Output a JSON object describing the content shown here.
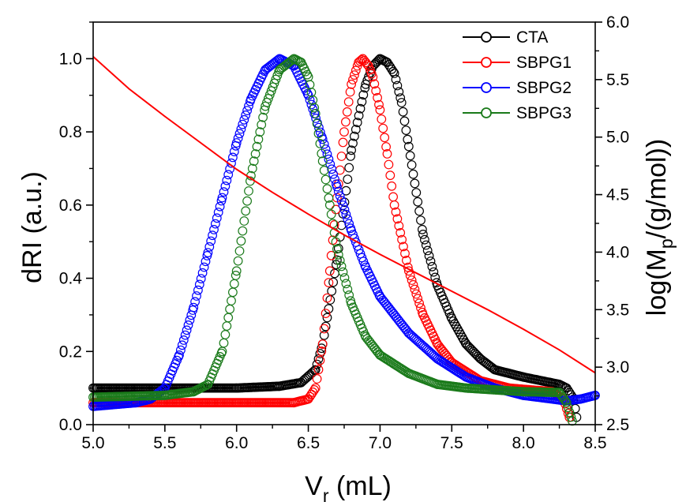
{
  "chart_data": {
    "type": "scatter",
    "x_axis": {
      "label_main": "V",
      "label_sub": "r",
      "label_unit": " (mL)",
      "lim": [
        5.0,
        8.5
      ],
      "ticks": [
        "5.0",
        "5.5",
        "6.0",
        "6.5",
        "7.0",
        "7.5",
        "8.0",
        "8.5"
      ]
    },
    "y_axis_left": {
      "label": "dRI (a.u.)",
      "lim": [
        0.0,
        1.1
      ],
      "ticks": [
        "0.0",
        "0.2",
        "0.4",
        "0.6",
        "0.8",
        "1.0"
      ]
    },
    "y_axis_right": {
      "label_prefix": "log(M",
      "label_sub": "p",
      "label_suffix": "/(g/mol))",
      "lim": [
        2.5,
        6.0
      ],
      "ticks": [
        "2.5",
        "3.0",
        "3.5",
        "4.0",
        "4.5",
        "5.0",
        "5.5",
        "6.0"
      ]
    },
    "legend_position": "top-right",
    "series": [
      {
        "name": "CTA",
        "color": "#000000",
        "axis": "left",
        "points": [
          [
            5.0,
            0.1
          ],
          [
            6.0,
            0.1
          ],
          [
            6.3,
            0.105
          ],
          [
            6.45,
            0.115
          ],
          [
            6.55,
            0.15
          ],
          [
            6.6,
            0.22
          ],
          [
            6.7,
            0.45
          ],
          [
            6.8,
            0.75
          ],
          [
            6.9,
            0.93
          ],
          [
            6.95,
            0.98
          ],
          [
            7.0,
            1.0
          ],
          [
            7.05,
            0.99
          ],
          [
            7.1,
            0.96
          ],
          [
            7.15,
            0.88
          ],
          [
            7.2,
            0.76
          ],
          [
            7.3,
            0.52
          ],
          [
            7.4,
            0.38
          ],
          [
            7.5,
            0.29
          ],
          [
            7.6,
            0.22
          ],
          [
            7.7,
            0.18
          ],
          [
            7.8,
            0.15
          ],
          [
            8.0,
            0.13
          ],
          [
            8.25,
            0.11
          ],
          [
            8.3,
            0.1
          ],
          [
            8.35,
            0.07
          ],
          [
            8.37,
            0.02
          ]
        ]
      },
      {
        "name": "SBPG1",
        "color": "#ff0000",
        "axis": "left",
        "points": [
          [
            5.0,
            0.06
          ],
          [
            6.4,
            0.06
          ],
          [
            6.5,
            0.07
          ],
          [
            6.55,
            0.1
          ],
          [
            6.6,
            0.22
          ],
          [
            6.65,
            0.42
          ],
          [
            6.7,
            0.62
          ],
          [
            6.75,
            0.8
          ],
          [
            6.8,
            0.93
          ],
          [
            6.85,
            0.99
          ],
          [
            6.88,
            1.0
          ],
          [
            6.92,
            0.98
          ],
          [
            6.95,
            0.95
          ],
          [
            7.0,
            0.86
          ],
          [
            7.05,
            0.74
          ],
          [
            7.1,
            0.6
          ],
          [
            7.2,
            0.42
          ],
          [
            7.3,
            0.3
          ],
          [
            7.4,
            0.22
          ],
          [
            7.5,
            0.17
          ],
          [
            7.7,
            0.12
          ],
          [
            7.9,
            0.1
          ],
          [
            8.2,
            0.09
          ],
          [
            8.28,
            0.07
          ],
          [
            8.32,
            0.02
          ]
        ]
      },
      {
        "name": "SBPG2",
        "color": "#0000ff",
        "axis": "left",
        "points": [
          [
            5.0,
            0.05
          ],
          [
            5.3,
            0.06
          ],
          [
            5.4,
            0.07
          ],
          [
            5.5,
            0.1
          ],
          [
            5.6,
            0.19
          ],
          [
            5.7,
            0.32
          ],
          [
            5.8,
            0.47
          ],
          [
            5.9,
            0.62
          ],
          [
            6.0,
            0.77
          ],
          [
            6.1,
            0.89
          ],
          [
            6.2,
            0.97
          ],
          [
            6.3,
            1.0
          ],
          [
            6.4,
            0.98
          ],
          [
            6.5,
            0.9
          ],
          [
            6.6,
            0.78
          ],
          [
            6.7,
            0.65
          ],
          [
            6.8,
            0.53
          ],
          [
            6.9,
            0.43
          ],
          [
            7.0,
            0.35
          ],
          [
            7.2,
            0.25
          ],
          [
            7.4,
            0.18
          ],
          [
            7.6,
            0.13
          ],
          [
            7.8,
            0.1
          ],
          [
            8.0,
            0.08
          ],
          [
            8.3,
            0.065
          ],
          [
            8.4,
            0.07
          ],
          [
            8.5,
            0.08
          ]
        ]
      },
      {
        "name": "SBPG3",
        "color": "#1a7a1a",
        "axis": "left",
        "points": [
          [
            5.0,
            0.075
          ],
          [
            5.5,
            0.08
          ],
          [
            5.7,
            0.09
          ],
          [
            5.8,
            0.11
          ],
          [
            5.9,
            0.2
          ],
          [
            6.0,
            0.42
          ],
          [
            6.1,
            0.68
          ],
          [
            6.2,
            0.87
          ],
          [
            6.3,
            0.97
          ],
          [
            6.4,
            1.0
          ],
          [
            6.45,
            0.99
          ],
          [
            6.5,
            0.95
          ],
          [
            6.55,
            0.85
          ],
          [
            6.6,
            0.72
          ],
          [
            6.65,
            0.6
          ],
          [
            6.7,
            0.48
          ],
          [
            6.8,
            0.33
          ],
          [
            6.9,
            0.24
          ],
          [
            7.0,
            0.19
          ],
          [
            7.2,
            0.14
          ],
          [
            7.4,
            0.11
          ],
          [
            7.6,
            0.1
          ],
          [
            8.0,
            0.09
          ],
          [
            8.25,
            0.088
          ],
          [
            8.3,
            0.06
          ],
          [
            8.34,
            0.01
          ]
        ]
      },
      {
        "name": "",
        "color": "#ff0000",
        "axis": "right",
        "style": "line",
        "points": [
          [
            5.0,
            5.7
          ],
          [
            5.25,
            5.42
          ],
          [
            5.5,
            5.18
          ],
          [
            5.75,
            4.95
          ],
          [
            6.0,
            4.72
          ],
          [
            6.25,
            4.52
          ],
          [
            6.5,
            4.33
          ],
          [
            6.75,
            4.15
          ],
          [
            7.0,
            3.98
          ],
          [
            7.25,
            3.82
          ],
          [
            7.5,
            3.66
          ],
          [
            7.75,
            3.5
          ],
          [
            8.0,
            3.33
          ],
          [
            8.25,
            3.15
          ],
          [
            8.5,
            2.95
          ]
        ]
      }
    ]
  }
}
